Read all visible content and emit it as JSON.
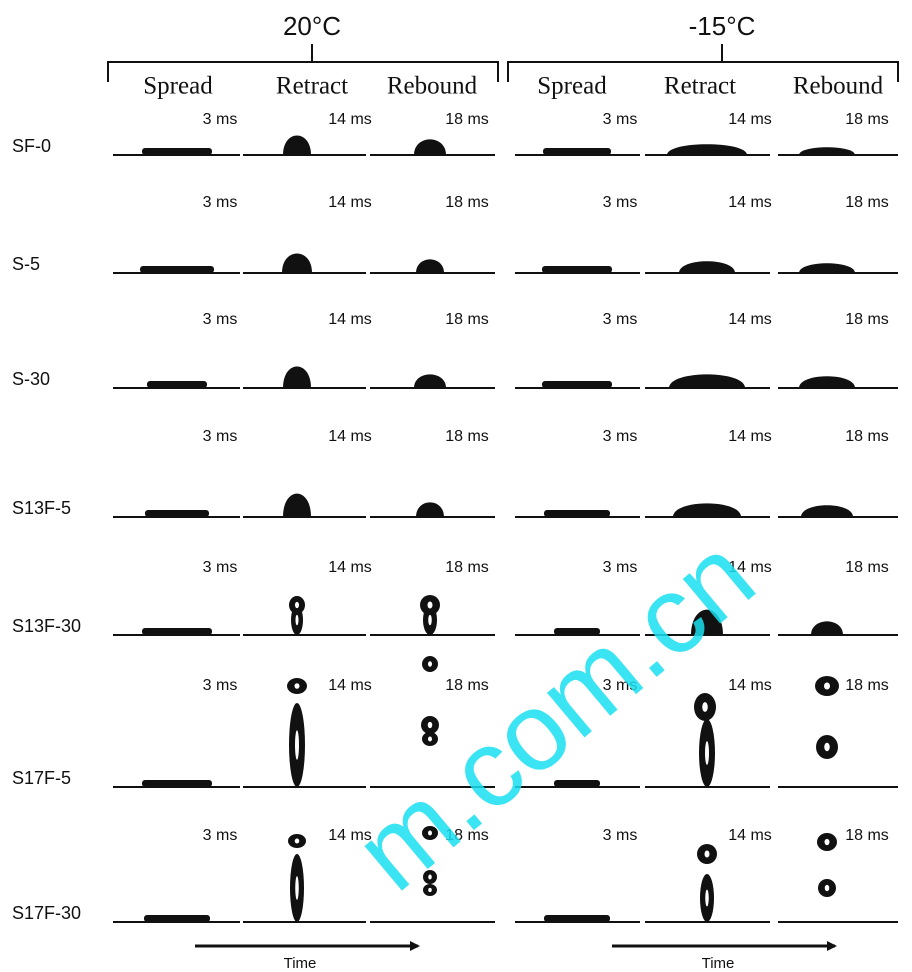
{
  "groups": [
    {
      "temperature": "20°C",
      "phases": [
        "Spread",
        "Retract",
        "Rebound"
      ]
    },
    {
      "temperature": "-15°C",
      "phases": [
        "Spread",
        "Retract",
        "Rebound"
      ]
    }
  ],
  "rows": [
    {
      "label": "SF-0",
      "times": [
        [
          "3 ms",
          "14 ms",
          "18 ms"
        ],
        [
          "3 ms",
          "14 ms",
          "18 ms"
        ]
      ]
    },
    {
      "label": "S-5",
      "times": [
        [
          "3 ms",
          "14 ms",
          "18 ms"
        ],
        [
          "3 ms",
          "14 ms",
          "18 ms"
        ]
      ]
    },
    {
      "label": "S-30",
      "times": [
        [
          "3 ms",
          "14 ms",
          "18 ms"
        ],
        [
          "3 ms",
          "14 ms",
          "18 ms"
        ]
      ]
    },
    {
      "label": "S13F-5",
      "times": [
        [
          "3 ms",
          "14 ms",
          "18 ms"
        ],
        [
          "3 ms",
          "14 ms",
          "18 ms"
        ]
      ]
    },
    {
      "label": "S13F-30",
      "times": [
        [
          "3 ms",
          "14 ms",
          "18 ms"
        ],
        [
          "3 ms",
          "14 ms",
          "18 ms"
        ]
      ]
    },
    {
      "label": "S17F-5",
      "times": [
        [
          "3 ms",
          "14 ms",
          "18 ms"
        ],
        [
          "3 ms",
          "14 ms",
          "18 ms"
        ]
      ]
    },
    {
      "label": "S17F-30",
      "times": [
        [
          "3 ms",
          "14 ms",
          "18 ms"
        ],
        [
          "3 ms",
          "14 ms",
          "18 ms"
        ]
      ]
    }
  ],
  "time_axis": [
    "Time",
    "Time"
  ],
  "watermark": "m.com.cn"
}
